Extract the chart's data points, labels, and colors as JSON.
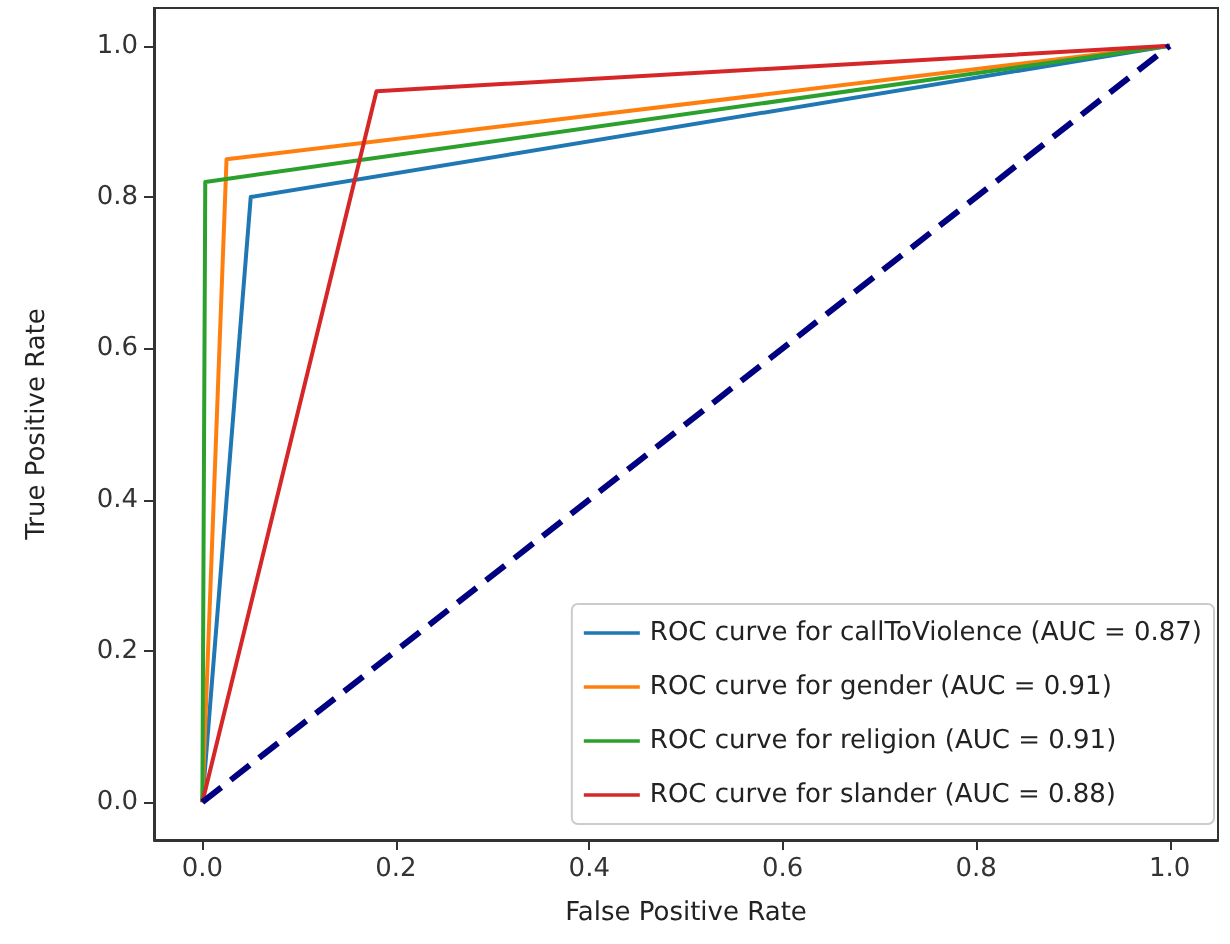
{
  "chart_data": {
    "type": "line",
    "xlabel": "False Positive Rate",
    "ylabel": "True Positive Rate",
    "xlim": [
      -0.05,
      1.05
    ],
    "ylim": [
      -0.05,
      1.05
    ],
    "xticks": [
      {
        "value": 0,
        "label": "0.0"
      },
      {
        "value": 0.2,
        "label": "0.2"
      },
      {
        "value": 0.4,
        "label": "0.4"
      },
      {
        "value": 0.6,
        "label": "0.6"
      },
      {
        "value": 0.8,
        "label": "0.8"
      },
      {
        "value": 1,
        "label": "1.0"
      }
    ],
    "yticks": [
      {
        "value": 0,
        "label": "0.0"
      },
      {
        "value": 0.2,
        "label": "0.2"
      },
      {
        "value": 0.4,
        "label": "0.4"
      },
      {
        "value": 0.6,
        "label": "0.6"
      },
      {
        "value": 0.8,
        "label": "0.8"
      },
      {
        "value": 1,
        "label": "1.0"
      }
    ],
    "series": [
      {
        "name": "ROC curve for callToViolence (AUC = 0.87)",
        "color": "#1f77b4",
        "x": [
          0,
          0.05,
          1
        ],
        "values": [
          0,
          0.8,
          1
        ]
      },
      {
        "name": "ROC curve for gender (AUC = 0.91)",
        "color": "#ff7f0e",
        "x": [
          0,
          0.025,
          1
        ],
        "values": [
          0,
          0.85,
          1
        ]
      },
      {
        "name": "ROC curve for religion (AUC = 0.91)",
        "color": "#2ca02c",
        "x": [
          0,
          0.003,
          1
        ],
        "values": [
          0,
          0.82,
          1
        ]
      },
      {
        "name": "ROC curve for slander (AUC = 0.88)",
        "color": "#d62728",
        "x": [
          0,
          0.18,
          1
        ],
        "values": [
          0,
          0.94,
          1
        ]
      },
      {
        "color": "#000080",
        "x": [
          0,
          1
        ],
        "values": [
          0,
          1
        ],
        "line_style": "dashed"
      }
    ],
    "legend": "bottom right",
    "grid": false,
    "marker": "none"
  }
}
